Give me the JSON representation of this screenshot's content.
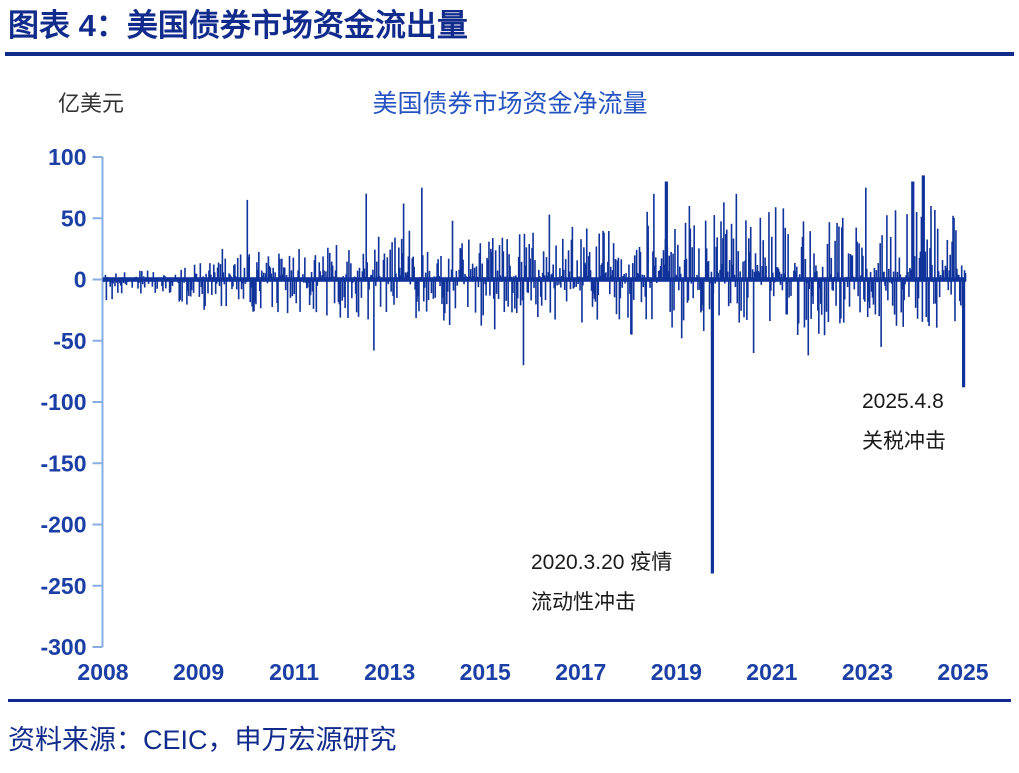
{
  "page": {
    "title": "图表 4：美国债券市场资金流出量",
    "source": "资料来源：CEIC，申万宏源研究"
  },
  "colors": {
    "title_navy": "#112B8C",
    "bar": "#10339B",
    "axis_line": "#88AEE0",
    "tick_label": "#1C3FA5",
    "chart_title_blue": "#2553C2",
    "annotation_text": "#1A1A1A"
  },
  "annotations": {
    "covid": {
      "line1": "2020.3.20 疫情",
      "line2": "流动性冲击"
    },
    "tariff": {
      "line1": "2025.4.8",
      "line2": "关税冲击"
    }
  },
  "chart_data": {
    "type": "bar",
    "title": "美国债券市场资金净流量",
    "unit_label": "亿美元",
    "ylabel": "亿美元",
    "ylim": [
      -300,
      100
    ],
    "yticks": [
      100,
      50,
      0,
      -50,
      -100,
      -150,
      -200,
      -250,
      -300
    ],
    "xtick_labels": [
      "2008",
      "2009",
      "2011",
      "2013",
      "2015",
      "2017",
      "2019",
      "2021",
      "2023",
      "2025"
    ],
    "x_range_years": [
      2008.0,
      2025.32
    ],
    "frequency": "weekly",
    "approx_point_count": 900,
    "gridlines": false,
    "legend": false,
    "noise_seed": 20250408,
    "envelope_amplitude": [
      {
        "t": 2008.0,
        "pos": 12,
        "neg": 16,
        "bias": -3
      },
      {
        "t": 2009.0,
        "pos": 9,
        "neg": 10,
        "bias": -1
      },
      {
        "t": 2010.0,
        "pos": 16,
        "neg": 26,
        "bias": 0
      },
      {
        "t": 2011.0,
        "pos": 24,
        "neg": 28,
        "bias": 1
      },
      {
        "t": 2012.0,
        "pos": 24,
        "neg": 30,
        "bias": 1
      },
      {
        "t": 2013.0,
        "pos": 30,
        "neg": 34,
        "bias": 2
      },
      {
        "t": 2014.0,
        "pos": 38,
        "neg": 38,
        "bias": 2
      },
      {
        "t": 2015.0,
        "pos": 33,
        "neg": 40,
        "bias": 2
      },
      {
        "t": 2016.0,
        "pos": 34,
        "neg": 44,
        "bias": 2
      },
      {
        "t": 2017.0,
        "pos": 38,
        "neg": 36,
        "bias": 3
      },
      {
        "t": 2018.0,
        "pos": 40,
        "neg": 44,
        "bias": 3
      },
      {
        "t": 2019.0,
        "pos": 48,
        "neg": 44,
        "bias": 6
      },
      {
        "t": 2020.0,
        "pos": 48,
        "neg": 46,
        "bias": 5
      },
      {
        "t": 2021.0,
        "pos": 50,
        "neg": 42,
        "bias": 7
      },
      {
        "t": 2022.0,
        "pos": 44,
        "neg": 50,
        "bias": 4
      },
      {
        "t": 2023.0,
        "pos": 46,
        "neg": 52,
        "bias": 5
      },
      {
        "t": 2024.0,
        "pos": 54,
        "neg": 46,
        "bias": 7
      },
      {
        "t": 2025.4,
        "pos": 50,
        "neg": 45,
        "bias": 5
      }
    ],
    "notable_spikes": [
      {
        "t": 2010.88,
        "v": 65
      },
      {
        "t": 2013.28,
        "v": 70
      },
      {
        "t": 2013.42,
        "v": -58
      },
      {
        "t": 2014.02,
        "v": 62
      },
      {
        "t": 2014.38,
        "v": 75
      },
      {
        "t": 2015.0,
        "v": 48
      },
      {
        "t": 2016.42,
        "v": -70
      },
      {
        "t": 2016.95,
        "v": 53
      },
      {
        "t": 2018.6,
        "v": -45
      },
      {
        "t": 2019.05,
        "v": 70
      },
      {
        "t": 2019.3,
        "v": 80
      },
      {
        "t": 2019.6,
        "v": -48
      },
      {
        "t": 2020.05,
        "v": -42
      },
      {
        "t": 2020.45,
        "v": 63
      },
      {
        "t": 2020.7,
        "v": 70
      },
      {
        "t": 2021.05,
        "v": -60
      },
      {
        "t": 2021.35,
        "v": 55
      },
      {
        "t": 2022.15,
        "v": -62
      },
      {
        "t": 2023.3,
        "v": 75
      },
      {
        "t": 2023.6,
        "v": -55
      },
      {
        "t": 2024.25,
        "v": 80
      },
      {
        "t": 2024.45,
        "v": 85
      },
      {
        "t": 2024.6,
        "v": 60
      },
      {
        "t": 2025.05,
        "v": 52
      }
    ],
    "key_events": [
      {
        "t": 2020.22,
        "v": -240,
        "label": "2020.3.20 疫情 流动性冲击"
      },
      {
        "t": 2025.27,
        "v": -88,
        "label": "2025.4.8 关税冲击"
      }
    ]
  }
}
